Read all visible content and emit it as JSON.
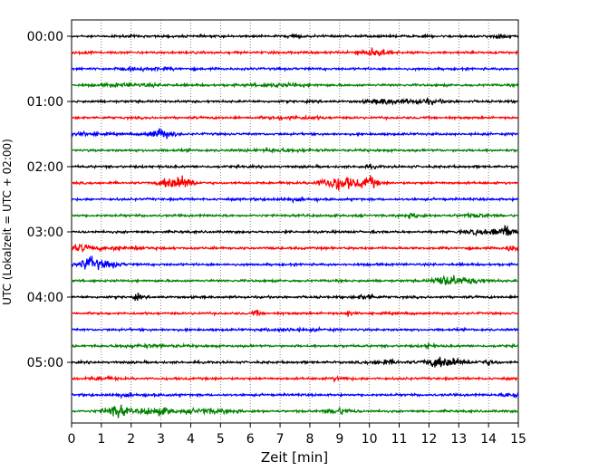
{
  "chart_data": {
    "type": "line",
    "title": "",
    "xlabel": "Zeit  [min]",
    "ylabel": "UTC (Lokalzeit = UTC + 02:00)",
    "xlim": [
      0,
      15
    ],
    "x_ticks": [
      0,
      1,
      2,
      3,
      4,
      5,
      6,
      7,
      8,
      9,
      10,
      11,
      12,
      13,
      14,
      15
    ],
    "grid": "vertical dotted",
    "y_tick_labels": [
      {
        "trace": 0,
        "label": "00:00"
      },
      {
        "trace": 4,
        "label": "01:00"
      },
      {
        "trace": 8,
        "label": "02:00"
      },
      {
        "trace": 12,
        "label": "03:00"
      },
      {
        "trace": 16,
        "label": "04:00"
      },
      {
        "trace": 20,
        "label": "05:00"
      }
    ],
    "trace_interval_minutes": 15,
    "color_cycle": [
      "#000000",
      "#ff0000",
      "#0000ff",
      "#008000"
    ],
    "traces": [
      {
        "index": 0,
        "color": "#000000",
        "bursts": [
          [
            7.5,
            0.2,
            1.5
          ],
          [
            14.5,
            0.4,
            1.5
          ]
        ]
      },
      {
        "index": 1,
        "color": "#ff0000",
        "bursts": [
          [
            10.2,
            0.5,
            3.5
          ],
          [
            0.5,
            0.2,
            1.2
          ]
        ]
      },
      {
        "index": 2,
        "color": "#0000ff",
        "bursts": [
          [
            2.5,
            1.0,
            1.0
          ]
        ]
      },
      {
        "index": 3,
        "color": "#008000",
        "bursts": [
          [
            2.0,
            1.0,
            1.2
          ],
          [
            7.0,
            1.0,
            1.2
          ]
        ]
      },
      {
        "index": 4,
        "color": "#000000",
        "bursts": [
          [
            10.5,
            0.5,
            2.5
          ],
          [
            11.8,
            0.8,
            2.0
          ]
        ]
      },
      {
        "index": 5,
        "color": "#ff0000",
        "bursts": [
          [
            7.5,
            1.0,
            1.0
          ]
        ]
      },
      {
        "index": 6,
        "color": "#0000ff",
        "bursts": [
          [
            3.0,
            0.4,
            5.0
          ],
          [
            0.5,
            0.5,
            1.2
          ]
        ]
      },
      {
        "index": 7,
        "color": "#008000",
        "bursts": [
          [
            7.0,
            1.0,
            1.0
          ]
        ]
      },
      {
        "index": 8,
        "color": "#000000",
        "bursts": [
          [
            10.0,
            0.3,
            1.2
          ]
        ]
      },
      {
        "index": 9,
        "color": "#ff0000",
        "bursts": [
          [
            3.3,
            0.3,
            6.0
          ],
          [
            3.8,
            0.3,
            6.0
          ],
          [
            9.0,
            0.6,
            7.0
          ],
          [
            10.0,
            0.3,
            6.0
          ]
        ]
      },
      {
        "index": 10,
        "color": "#0000ff",
        "bursts": [
          [
            7.5,
            1.0,
            1.0
          ]
        ]
      },
      {
        "index": 11,
        "color": "#008000",
        "bursts": [
          [
            11.5,
            0.3,
            2.0
          ],
          [
            13.5,
            0.5,
            1.5
          ]
        ]
      },
      {
        "index": 12,
        "color": "#000000",
        "bursts": [
          [
            14.5,
            0.4,
            6.0
          ],
          [
            13.5,
            0.4,
            2.0
          ]
        ]
      },
      {
        "index": 13,
        "color": "#ff0000",
        "bursts": [
          [
            0.3,
            0.3,
            3.0
          ],
          [
            14.8,
            0.2,
            3.0
          ],
          [
            1.5,
            1.0,
            1.5
          ]
        ]
      },
      {
        "index": 14,
        "color": "#0000ff",
        "bursts": [
          [
            0.6,
            0.3,
            7.0
          ],
          [
            1.2,
            0.4,
            3.0
          ]
        ]
      },
      {
        "index": 15,
        "color": "#008000",
        "bursts": [
          [
            12.6,
            0.4,
            6.0
          ],
          [
            13.5,
            0.5,
            2.5
          ]
        ]
      },
      {
        "index": 16,
        "color": "#000000",
        "bursts": [
          [
            2.2,
            0.1,
            3.0
          ],
          [
            9.9,
            0.3,
            2.5
          ]
        ]
      },
      {
        "index": 17,
        "color": "#ff0000",
        "bursts": [
          [
            6.2,
            0.15,
            2.0
          ],
          [
            9.3,
            0.1,
            3.0
          ]
        ]
      },
      {
        "index": 18,
        "color": "#0000ff",
        "bursts": [
          [
            7.5,
            1.0,
            1.0
          ]
        ]
      },
      {
        "index": 19,
        "color": "#008000",
        "bursts": [
          [
            12.0,
            0.15,
            3.0
          ],
          [
            2.5,
            1.0,
            1.0
          ]
        ]
      },
      {
        "index": 20,
        "color": "#000000",
        "bursts": [
          [
            12.5,
            0.6,
            5.5
          ],
          [
            10.5,
            0.5,
            2.0
          ],
          [
            14.0,
            0.3,
            2.0
          ]
        ]
      },
      {
        "index": 21,
        "color": "#ff0000",
        "bursts": [
          [
            9.0,
            0.3,
            2.0
          ],
          [
            1.0,
            0.5,
            1.2
          ]
        ]
      },
      {
        "index": 22,
        "color": "#0000ff",
        "bursts": [
          [
            14.8,
            0.3,
            3.0
          ],
          [
            2.0,
            1.0,
            1.0
          ]
        ]
      },
      {
        "index": 23,
        "color": "#008000",
        "bursts": [
          [
            1.5,
            0.4,
            6.5
          ],
          [
            2.8,
            0.5,
            4.0
          ],
          [
            9.0,
            0.4,
            3.0
          ],
          [
            4.5,
            1.0,
            2.0
          ]
        ]
      }
    ]
  }
}
